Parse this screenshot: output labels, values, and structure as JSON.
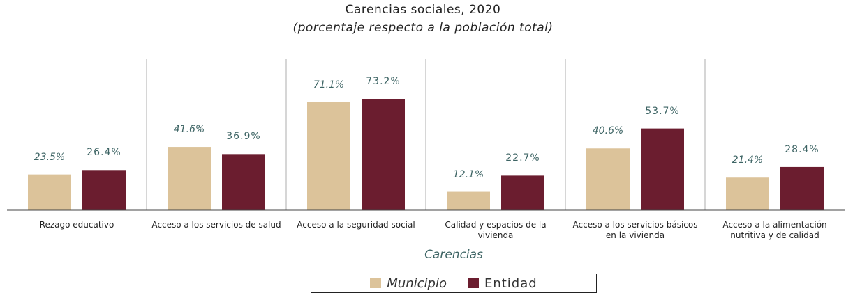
{
  "chart_data": {
    "type": "bar",
    "title": "Carencias sociales, 2020",
    "subtitle": "(porcentaje respecto a la población total)",
    "x_label": "Carencias",
    "categories": [
      "Rezago educativo",
      "Acceso a los servicios de salud",
      "Acceso a la seguridad social",
      "Calidad y espacios de la vivienda",
      "Acceso a los servicios básicos en la vivienda",
      "Acceso a la alimentación nutritiva y de calidad"
    ],
    "series": [
      {
        "name": "Municipio",
        "color": "#dcc39a",
        "values": [
          23.5,
          41.6,
          71.1,
          12.1,
          40.6,
          21.4
        ],
        "value_labels": [
          "23.5%",
          "41.6%",
          "71.1%",
          "12.1%",
          "40.6%",
          "21.4%"
        ]
      },
      {
        "name": "Entidad",
        "color": "#6b1d2f",
        "values": [
          26.4,
          36.9,
          73.2,
          22.7,
          53.7,
          28.4
        ],
        "value_labels": [
          "26.4%",
          "36.9%",
          "73.2%",
          "22.7%",
          "53.7%",
          "28.4%"
        ]
      }
    ],
    "legend": "bottom"
  }
}
